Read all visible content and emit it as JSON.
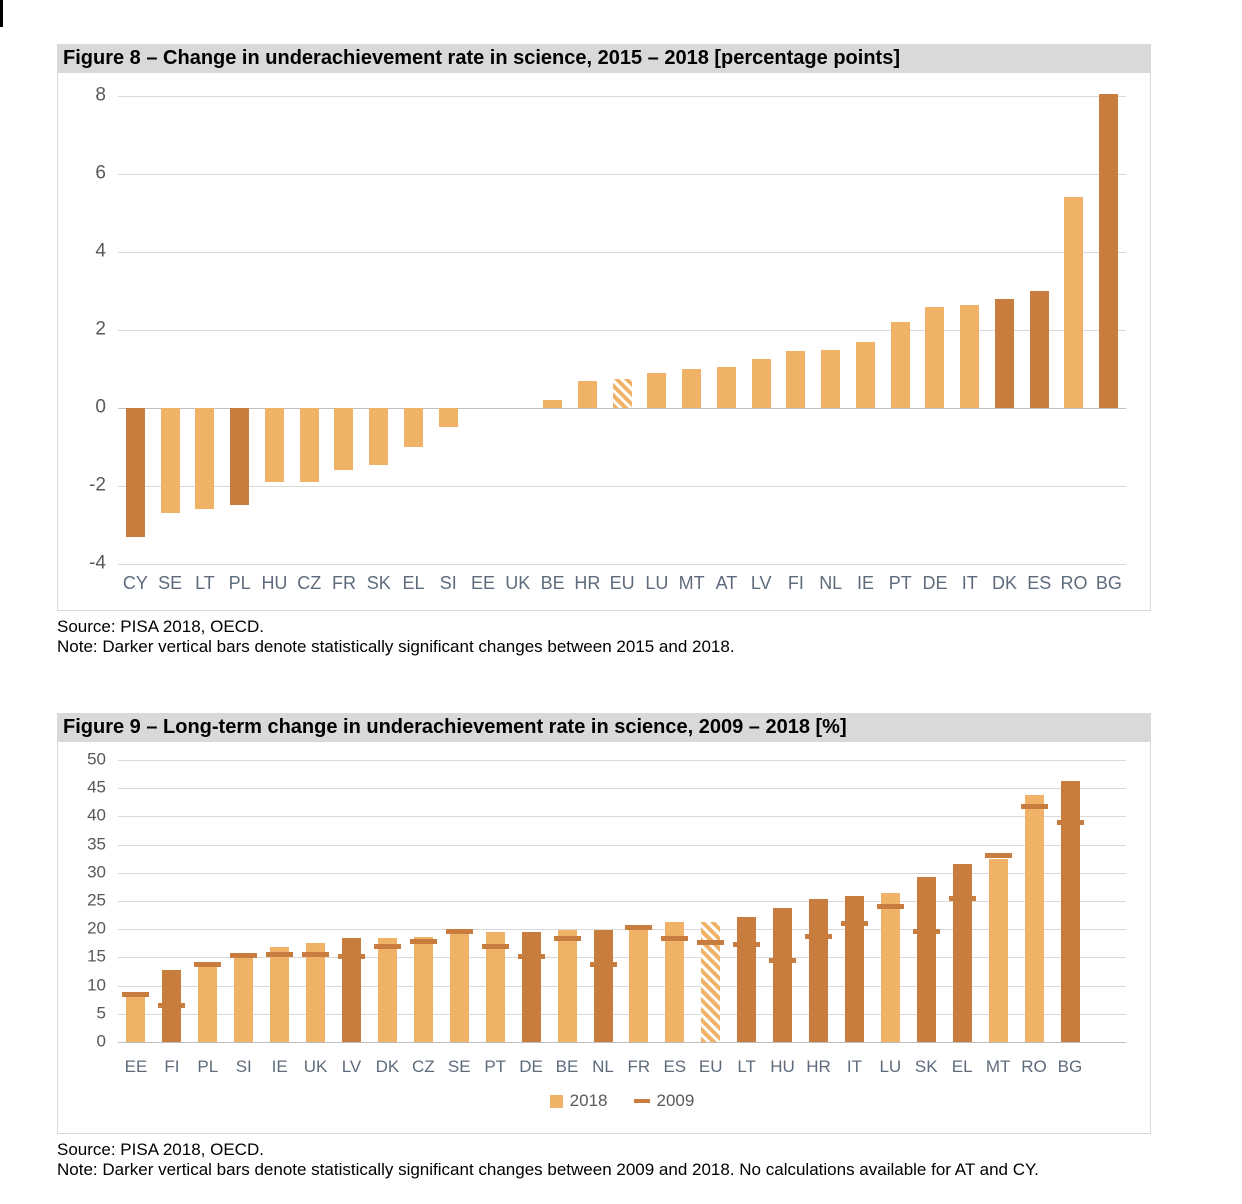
{
  "colors": {
    "bar_light": "#F0B266",
    "bar_dark": "#C87D3F",
    "header_bg": "#D9D9D9",
    "gridline": "#D9D9D9",
    "axis_line": "#BFBFBF",
    "tick_text": "#595959",
    "category_text": "#5E6B7C"
  },
  "figure8": {
    "title": "Figure 8 – Change in underachievement rate in science, 2015 – 2018 [percentage points]",
    "source": "Source: PISA 2018, OECD.",
    "note": "Note: Darker vertical bars denote statistically significant changes between 2015 and 2018.",
    "chart_data": {
      "type": "bar",
      "title": "Change in underachievement rate in science, 2015 – 2018 [percentage points]",
      "categories": [
        "CY",
        "SE",
        "LT",
        "PL",
        "HU",
        "CZ",
        "FR",
        "SK",
        "EL",
        "SI",
        "EE",
        "UK",
        "BE",
        "HR",
        "EU",
        "LU",
        "MT",
        "AT",
        "LV",
        "FI",
        "NL",
        "IE",
        "PT",
        "DE",
        "IT",
        "DK",
        "ES",
        "RO",
        "BG"
      ],
      "values": [
        -3.3,
        -2.7,
        -2.6,
        -2.5,
        -1.9,
        -1.9,
        -1.6,
        -1.45,
        -1.0,
        -0.5,
        0,
        0,
        0.2,
        0.7,
        0.75,
        0.9,
        1.0,
        1.05,
        1.25,
        1.45,
        1.5,
        1.7,
        2.2,
        2.6,
        2.65,
        2.8,
        3.0,
        5.4,
        8.05
      ],
      "significant_dark_bars": [
        "CY",
        "PL",
        "DK",
        "ES",
        "BG"
      ],
      "hatched": [
        "EU"
      ],
      "ylim": [
        -4,
        8
      ],
      "yticks": [
        8,
        6,
        4,
        2,
        0,
        -2,
        -4
      ],
      "grid": true,
      "legend": "none"
    }
  },
  "figure9": {
    "title": "Figure 9 – Long-term change in underachievement rate in science, 2009 – 2018 [%]",
    "source": "Source: PISA 2018, OECD.",
    "note": "Note: Darker vertical bars denote statistically significant changes between 2009 and 2018. No calculations available for AT and CY.",
    "legend": [
      {
        "label": "2018",
        "swatch": "square",
        "color": "#F0B266"
      },
      {
        "label": "2009",
        "swatch": "dash",
        "color": "#C87D3F"
      }
    ],
    "chart_data": {
      "type": "bar",
      "title": "Long-term change in underachievement rate in science, 2009 – 2018 [%]",
      "categories": [
        "EE",
        "FI",
        "PL",
        "SI",
        "IE",
        "UK",
        "LV",
        "DK",
        "CZ",
        "SE",
        "PT",
        "DE",
        "BE",
        "NL",
        "FR",
        "ES",
        "EU",
        "LT",
        "HU",
        "HR",
        "IT",
        "LU",
        "SK",
        "EL",
        "MT",
        "RO",
        "BG"
      ],
      "series": [
        {
          "name": "2018",
          "style": "bar",
          "values": [
            8.2,
            12.7,
            13.4,
            15.1,
            16.8,
            17.5,
            18.4,
            18.4,
            18.7,
            19.4,
            19.5,
            19.5,
            19.9,
            19.9,
            20.0,
            21.2,
            21.3,
            22.1,
            23.8,
            25.3,
            25.8,
            26.5,
            29.2,
            31.5,
            32.5,
            43.8,
            46.2
          ]
        },
        {
          "name": "2009",
          "style": "dash",
          "values": [
            8.5,
            6.4,
            13.7,
            15.4,
            15.5,
            15.5,
            15.2,
            17.0,
            17.8,
            19.6,
            17.0,
            15.1,
            18.3,
            13.7,
            20.3,
            18.3,
            17.7,
            17.2,
            14.5,
            18.7,
            21.0,
            24.0,
            19.6,
            25.5,
            33.0,
            41.7,
            39.0
          ]
        }
      ],
      "significant_dark_bars": [
        "FI",
        "LV",
        "DE",
        "NL",
        "LT",
        "HU",
        "HR",
        "IT",
        "SK",
        "EL",
        "BG"
      ],
      "hatched": [
        "EU"
      ],
      "ylim": [
        0,
        50
      ],
      "yticks": [
        50,
        45,
        40,
        35,
        30,
        25,
        20,
        15,
        10,
        5,
        0
      ],
      "grid": true,
      "legend_position": "bottom"
    }
  }
}
